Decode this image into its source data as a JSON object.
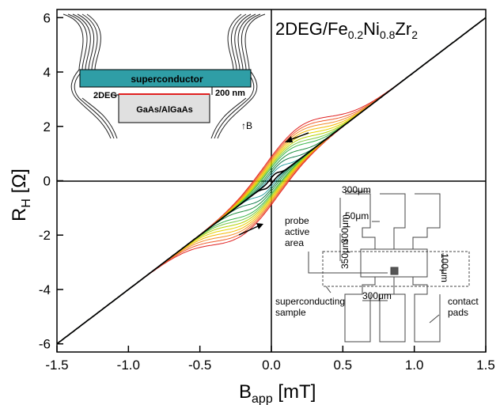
{
  "chart_data": {
    "type": "line",
    "title": {
      "main": "2DEG/Fe",
      "sub1": "0.2",
      "mid1": "Ni",
      "sub2": "0.8",
      "mid2": "Zr",
      "sub3": "2"
    },
    "xlabel": {
      "main": "B",
      "sub": "app",
      "unit": " [mT]"
    },
    "ylabel": {
      "main": "R",
      "sub": "H",
      "unit": " [Ω]"
    },
    "xlim": [
      -1.5,
      1.5
    ],
    "ylim": [
      -6.3,
      6.3
    ],
    "x_ticks": [
      -1.5,
      -1.0,
      -0.5,
      0.0,
      0.5,
      1.0,
      1.5
    ],
    "x_tick_labels": [
      "-1.5",
      "-1.0",
      "-0.5",
      "0.0",
      "0.5",
      "1.0",
      "1.5"
    ],
    "y_ticks": [
      -6,
      -4,
      -2,
      0,
      2,
      4,
      6
    ],
    "y_tick_labels": [
      "-6",
      "-4",
      "-2",
      "0",
      "2",
      "4",
      "6"
    ],
    "slope_ohm_per_mT": 4.0,
    "hysteresis_curves": [
      {
        "color": "#e02020",
        "width_mT": 0.36,
        "height_ohm": 1.2
      },
      {
        "color": "#f05a28",
        "width_mT": 0.34,
        "height_ohm": 1.12
      },
      {
        "color": "#f28c28",
        "width_mT": 0.32,
        "height_ohm": 1.04
      },
      {
        "color": "#f5b800",
        "width_mT": 0.3,
        "height_ohm": 0.96
      },
      {
        "color": "#e6d200",
        "width_mT": 0.28,
        "height_ohm": 0.88
      },
      {
        "color": "#b5d200",
        "width_mT": 0.26,
        "height_ohm": 0.8
      },
      {
        "color": "#7ac943",
        "width_mT": 0.24,
        "height_ohm": 0.72
      },
      {
        "color": "#39b54a",
        "width_mT": 0.22,
        "height_ohm": 0.64
      },
      {
        "color": "#1e8f3e",
        "width_mT": 0.18,
        "height_ohm": 0.52
      },
      {
        "color": "#0f7a4a",
        "width_mT": 0.14,
        "height_ohm": 0.4
      },
      {
        "color": "#2aa0a0",
        "width_mT": 0.1,
        "height_ohm": 0.28
      },
      {
        "color": "#000000",
        "width_mT": 0.05,
        "height_ohm": 0.15
      }
    ],
    "grid": false,
    "legend": "none"
  },
  "inset_left": {
    "superconductor": "superconductor",
    "twodeg": "2DEG",
    "substrate": "GaAs/AlGaAs",
    "thickness": "200 nm",
    "field": "B",
    "superconductor_color": "#2f9ea6"
  },
  "inset_right": {
    "dim_300_top": "300μm",
    "dim_50": "50μm",
    "dim_300_side": "300μm",
    "dim_350": "350μm",
    "dim_100": "100μm",
    "dim_300_bottom": "300μm",
    "probe_line1": "probe",
    "probe_line2": "active",
    "probe_line3": "area",
    "sample_line1": "superconducting",
    "sample_line2": "sample",
    "pads_line1": "contact",
    "pads_line2": "pads"
  }
}
